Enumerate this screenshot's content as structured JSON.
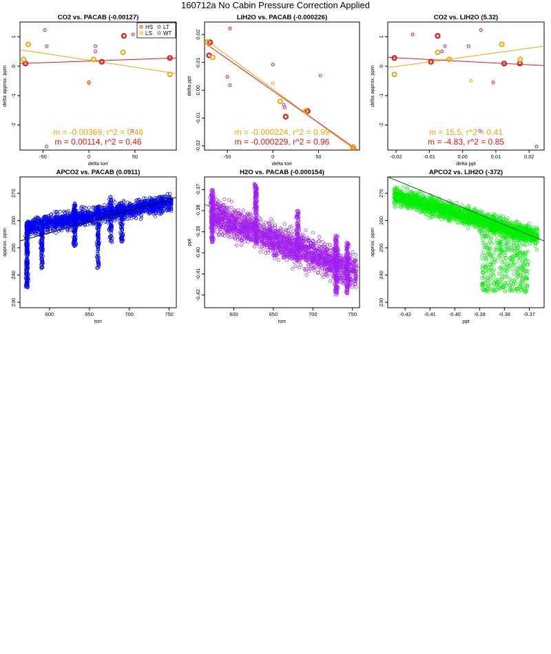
{
  "page_title": "160712a   No Cabin Pressure Correction Applied",
  "chart_data": [
    {
      "id": "p1",
      "type": "scatter",
      "title": "CO2 vs. PACAB (-0.00127)",
      "xlabel": "delta torr",
      "ylabel": "delta approx. ppm",
      "xlim": [
        -75,
        95
      ],
      "ylim": [
        -2.85,
        1.5
      ],
      "xticks": [
        -50,
        0,
        50
      ],
      "yticks": [
        -2,
        -1,
        0,
        1
      ],
      "ytick_rotate": true,
      "legend": {
        "position": "top-right",
        "entries": [
          {
            "label": "HS",
            "color": "#ee1111"
          },
          {
            "label": "LT",
            "color": "#ee1111"
          },
          {
            "label": "LS",
            "color": "#f5a300"
          },
          {
            "label": "WT",
            "color": "#a020f0"
          }
        ]
      },
      "annotations": [
        {
          "text": "m = -0.00369, r^2 = 0.46",
          "color": "#f5a300"
        },
        {
          "text": "m = 0.00114, r^2 = 0.46",
          "color": "#ee1111"
        }
      ],
      "lines": [
        {
          "color": "#f5a300",
          "x": [
            -75,
            95
          ],
          "y": [
            0.56,
            -0.25
          ]
        },
        {
          "color": "#ee1111",
          "x": [
            -75,
            95
          ],
          "y": [
            0.09,
            0.28
          ]
        }
      ],
      "series": [
        {
          "name": "HS",
          "color": "#ee1111",
          "size": 3,
          "width": 2.2,
          "x": [
            -69,
            14,
            38,
            88
          ],
          "y": [
            0.09,
            0.15,
            1.03,
            0.28
          ]
        },
        {
          "name": "LS",
          "color": "#f5a300",
          "size": 3,
          "width": 2.0,
          "x": [
            -71,
            -66,
            5,
            37,
            88
          ],
          "y": [
            0.23,
            0.74,
            0.23,
            0.47,
            -0.28
          ]
        },
        {
          "name": "LT",
          "color": "#ee1111",
          "size": 2,
          "width": 1,
          "x": [
            -48,
            0,
            48,
            88
          ],
          "y": [
            1.23,
            -0.55,
            1.08,
            1.1
          ]
        },
        {
          "name": "LTs",
          "color": "#f5a300",
          "size": 2,
          "width": 1,
          "x": [
            0
          ],
          "y": [
            -0.6
          ]
        },
        {
          "name": "WT",
          "color": "#a020f0",
          "size": 2,
          "width": 1,
          "x": [
            -46,
            7,
            7,
            47,
            -46
          ],
          "y": [
            0.68,
            0.68,
            0.5,
            -2.2,
            -2.73
          ]
        }
      ]
    },
    {
      "id": "p2",
      "type": "scatter",
      "title": "LIH2O vs. PACAB (-0.000226)",
      "xlabel": "delta torr",
      "ylabel": "delta ppt",
      "xlim": [
        -75,
        95
      ],
      "ylim": [
        -0.0215,
        0.0245
      ],
      "xticks": [
        -50,
        0,
        50
      ],
      "yticks": [
        -0.02,
        -0.01,
        0.0,
        0.01,
        0.02
      ],
      "ytick_labels": [
        "-0.02",
        "-0.01",
        "0.00",
        "0.01",
        "0.02"
      ],
      "ytick_rotate": true,
      "annotations": [
        {
          "text": "m = -0.000224, r^2 = 0.99",
          "color": "#f5a300"
        },
        {
          "text": "m = -0.000229, r^2 = 0.96",
          "color": "#ee1111"
        }
      ],
      "lines": [
        {
          "color": "#f5a300",
          "x": [
            -75,
            95
          ],
          "y": [
            0.0185,
            -0.0226
          ]
        },
        {
          "color": "#ee1111",
          "x": [
            -75,
            95
          ],
          "y": [
            0.017,
            -0.022
          ]
        }
      ],
      "series": [
        {
          "name": "HS",
          "color": "#ee1111",
          "size": 3,
          "width": 2.2,
          "x": [
            -69,
            -70,
            14,
            38,
            88
          ],
          "y": [
            0.0172,
            0.0125,
            -0.0095,
            -0.0075,
            -0.0205
          ]
        },
        {
          "name": "LS",
          "color": "#f5a300",
          "size": 3,
          "width": 2.0,
          "x": [
            -72,
            -66,
            8,
            36,
            88
          ],
          "y": [
            0.0173,
            0.0118,
            -0.004,
            -0.0075,
            -0.0205
          ]
        },
        {
          "name": "LT",
          "color": "#ee1111",
          "size": 2,
          "width": 1,
          "x": [
            -47,
            -50,
            0
          ],
          "y": [
            0.0222,
            0.0048,
            0.0092
          ]
        },
        {
          "name": "LTs",
          "color": "#f5a300",
          "size": 2,
          "width": 1,
          "x": [
            0
          ],
          "y": [
            0.0025
          ]
        },
        {
          "name": "WT",
          "color": "#a020f0",
          "size": 2,
          "width": 1,
          "x": [
            -47,
            12,
            13,
            52
          ],
          "y": [
            0.0018,
            -0.0053,
            -0.0062,
            0.0052
          ]
        }
      ]
    },
    {
      "id": "p3",
      "type": "scatter",
      "title": "CO2 vs. LIH2O (5.32)",
      "xlabel": "delta ppt",
      "ylabel": "delta approx. ppm",
      "xlim": [
        -0.0225,
        0.0245
      ],
      "ylim": [
        -2.85,
        1.5
      ],
      "xticks": [
        -0.02,
        -0.01,
        0.0,
        0.01,
        0.02
      ],
      "xtick_labels": [
        "-0.02",
        "-0.01",
        "0.00",
        "0.01",
        "0.02"
      ],
      "yticks": [
        -2,
        -1,
        0,
        1
      ],
      "ytick_rotate": true,
      "annotations": [
        {
          "text": "m = 15.5, r^2 = 0.41",
          "color": "#f5a300"
        },
        {
          "text": "m = -4.83, r^2 = 0.85",
          "color": "#ee1111"
        }
      ],
      "lines": [
        {
          "color": "#f5a300",
          "x": [
            -0.0225,
            0.0245
          ],
          "y": [
            -0.05,
            0.68
          ]
        },
        {
          "color": "#ee1111",
          "x": [
            -0.0225,
            0.0245
          ],
          "y": [
            0.3,
            0.02
          ]
        }
      ],
      "series": [
        {
          "name": "HS",
          "color": "#ee1111",
          "size": 3,
          "width": 2.2,
          "x": [
            -0.0205,
            -0.0095,
            -0.0075,
            0.0125,
            0.0172
          ],
          "y": [
            0.28,
            0.15,
            1.03,
            0.09,
            0.09
          ]
        },
        {
          "name": "LS",
          "color": "#f5a300",
          "size": 3,
          "width": 2.0,
          "x": [
            -0.0205,
            -0.0075,
            -0.004,
            0.0118,
            0.0173
          ],
          "y": [
            -0.28,
            0.47,
            0.23,
            0.74,
            0.23
          ]
        },
        {
          "name": "LT",
          "color": "#ee1111",
          "size": 2,
          "width": 1,
          "x": [
            -0.015,
            0.0055,
            0.0092,
            0.0222
          ],
          "y": [
            1.08,
            1.23,
            -0.55,
            -2.73
          ]
        },
        {
          "name": "LTs",
          "color": "#f5a300",
          "size": 2,
          "width": 1,
          "x": [
            0.0025
          ],
          "y": [
            -0.5
          ]
        },
        {
          "name": "WT",
          "color": "#a020f0",
          "size": 2,
          "width": 1,
          "x": [
            -0.0062,
            -0.0053,
            0.0018,
            0.0052
          ],
          "y": [
            0.5,
            0.68,
            0.68,
            -2.2
          ]
        }
      ]
    },
    {
      "id": "p4",
      "type": "scatter",
      "title": "APCO2 vs. PACAB (0.0911)",
      "xlabel": "torr",
      "ylabel": "approx. ppm",
      "xlim": [
        563,
        759
      ],
      "ylim": [
        228,
        276
      ],
      "xticks": [
        600,
        650,
        700,
        750
      ],
      "yticks": [
        230,
        240,
        250,
        260,
        270
      ],
      "ytick_rotate": true,
      "point_color": "#0000ee",
      "fit_line": {
        "color": "#000000",
        "x": [
          563,
          759
        ],
        "y": [
          252.5,
          268.5
        ]
      },
      "cloud_seed": 11
    },
    {
      "id": "p5",
      "type": "scatter",
      "title": "H2O vs. PACAB (-0.000154)",
      "xlabel": "torr",
      "ylabel": "ppt",
      "xlim": [
        563,
        759
      ],
      "ylim": [
        -0.426,
        -0.364
      ],
      "xticks": [
        600,
        650,
        700,
        750
      ],
      "yticks": [
        -0.42,
        -0.41,
        -0.4,
        -0.39,
        -0.38,
        -0.37
      ],
      "ytick_labels": [
        "-0.42",
        "-0.41",
        "-0.40",
        "-0.39",
        "-0.38",
        "-0.37"
      ],
      "ytick_rotate": true,
      "point_color": "#a020f0",
      "fit_line": {
        "color": "#a020f0",
        "x": [
          563,
          759
        ],
        "y": [
          -0.377,
          -0.407
        ]
      },
      "cloud_seed": 23
    },
    {
      "id": "p6",
      "type": "scatter",
      "title": "APCO2 vs. LIH2O (-372)",
      "xlabel": "ppt",
      "ylabel": "approx. ppm",
      "xlim": [
        -0.427,
        -0.364
      ],
      "ylim": [
        228,
        276
      ],
      "xticks": [
        -0.42,
        -0.41,
        -0.4,
        -0.39,
        -0.38,
        -0.37
      ],
      "xtick_labels": [
        "-0.42",
        "-0.41",
        "-0.40",
        "-0.39",
        "-0.38",
        "-0.37"
      ],
      "yticks": [
        230,
        240,
        250,
        260,
        270
      ],
      "ytick_rotate": true,
      "point_color": "#00ee00",
      "fit_line": {
        "color": "#006400",
        "x": [
          -0.427,
          -0.364
        ],
        "y": [
          276,
          252.5
        ]
      },
      "cloud_seed": 37
    }
  ]
}
